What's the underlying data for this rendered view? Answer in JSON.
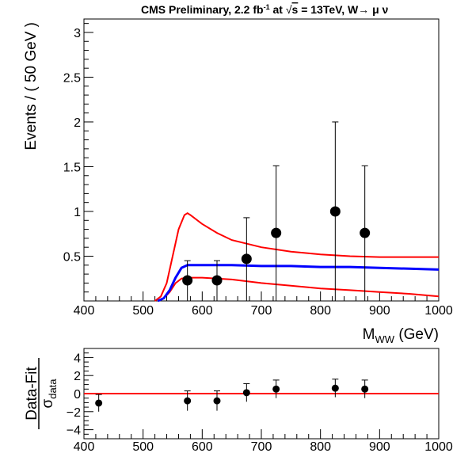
{
  "chart_data": [
    {
      "type": "scatter",
      "title": {
        "pre": "CMS Preliminary, 2.2 fb",
        "sup": "-1",
        "mid": " at  ",
        "sqrt": "√",
        "s": "s",
        "post": " = 13TeV, W→ μ ν"
      },
      "xlabel": {
        "main": "M",
        "sub": "WW",
        "unit": " (GeV)"
      },
      "ylabel": "Events / ( 50 GeV )",
      "xlim": [
        400,
        1000
      ],
      "ylim": [
        0,
        3.15
      ],
      "xticks": [
        400,
        500,
        600,
        700,
        800,
        900,
        1000
      ],
      "xtick_labels": [
        "400",
        "500",
        "600",
        "700",
        "800",
        "900",
        "1000"
      ],
      "yticks": [
        0.5,
        1,
        1.5,
        2,
        2.5,
        3
      ],
      "ytick_labels": [
        "0.5",
        "1",
        "1.5",
        "2",
        "2.5",
        "3"
      ],
      "points": [
        {
          "x": 575,
          "y": 0.23,
          "lo": 0.0,
          "hi": 0.45
        },
        {
          "x": 625,
          "y": 0.23,
          "lo": 0.0,
          "hi": 0.45
        },
        {
          "x": 675,
          "y": 0.47,
          "lo": 0.0,
          "hi": 0.93
        },
        {
          "x": 725,
          "y": 0.76,
          "lo": 0.0,
          "hi": 1.51
        },
        {
          "x": 825,
          "y": 1.0,
          "lo": 0.0,
          "hi": 2.0
        },
        {
          "x": 875,
          "y": 0.76,
          "lo": 0.0,
          "hi": 1.51
        }
      ],
      "fit": {
        "color": "#0000ff",
        "x": [
          525,
          535,
          545,
          555,
          565,
          575,
          600,
          650,
          700,
          750,
          800,
          850,
          900,
          950,
          1000
        ],
        "y": [
          0.0,
          0.03,
          0.12,
          0.26,
          0.37,
          0.4,
          0.4,
          0.4,
          0.39,
          0.39,
          0.38,
          0.38,
          0.37,
          0.36,
          0.35
        ]
      },
      "band_upper": {
        "color": "#ff0000",
        "x": [
          520,
          530,
          540,
          550,
          560,
          570,
          575,
          580,
          600,
          625,
          650,
          700,
          750,
          800,
          850,
          900,
          950,
          1000
        ],
        "y": [
          0.0,
          0.05,
          0.2,
          0.5,
          0.8,
          0.96,
          0.98,
          0.96,
          0.86,
          0.76,
          0.68,
          0.6,
          0.55,
          0.52,
          0.5,
          0.49,
          0.49,
          0.49
        ]
      },
      "band_lower": {
        "color": "#ff0000",
        "x": [
          525,
          535,
          545,
          555,
          565,
          575,
          600,
          650,
          700,
          750,
          800,
          850,
          900,
          950,
          1000
        ],
        "y": [
          0.0,
          0.03,
          0.1,
          0.2,
          0.25,
          0.26,
          0.26,
          0.24,
          0.2,
          0.17,
          0.14,
          0.12,
          0.1,
          0.08,
          0.05
        ]
      }
    },
    {
      "type": "scatter",
      "ylabel": {
        "main": "Data-Fit",
        "sigma": "σ",
        "sub": "data"
      },
      "xlim": [
        400,
        1000
      ],
      "ylim": [
        -5,
        5
      ],
      "xticks": [
        400,
        500,
        600,
        700,
        800,
        900,
        1000
      ],
      "xtick_labels": [
        "400",
        "500",
        "600",
        "700",
        "800",
        "900",
        "1000"
      ],
      "yticks": [
        -4,
        -2,
        0,
        2,
        4
      ],
      "ytick_labels": [
        "−4",
        "−2",
        "0",
        "2",
        "4"
      ],
      "zero_line": {
        "y": 0,
        "color": "#ff0000"
      },
      "points": [
        {
          "x": 425,
          "y": -1.05,
          "lo": -2.0,
          "hi": -0.1
        },
        {
          "x": 575,
          "y": -0.8,
          "lo": -1.9,
          "hi": 0.3
        },
        {
          "x": 625,
          "y": -0.8,
          "lo": -1.9,
          "hi": 0.3
        },
        {
          "x": 675,
          "y": 0.1,
          "lo": -0.9,
          "hi": 1.1
        },
        {
          "x": 725,
          "y": 0.5,
          "lo": -0.5,
          "hi": 1.5
        },
        {
          "x": 825,
          "y": 0.6,
          "lo": -0.4,
          "hi": 1.6
        },
        {
          "x": 875,
          "y": 0.5,
          "lo": -0.5,
          "hi": 1.5
        }
      ]
    }
  ]
}
